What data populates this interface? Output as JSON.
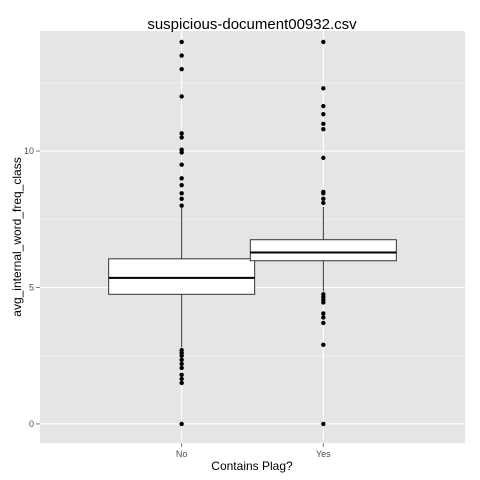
{
  "chart_data": {
    "type": "boxplot",
    "title": "suspicious-document00932.csv",
    "xlabel": "Contains Plag?",
    "ylabel": "avg_internal_word_freq_class",
    "categories": [
      "No",
      "Yes"
    ],
    "ylim": [
      -0.7,
      14.4
    ],
    "yticks": [
      0,
      5,
      10
    ],
    "ytick_labels": [
      "0",
      "5",
      "10"
    ],
    "grid": true,
    "legend": "none",
    "boxes": [
      {
        "category": "No",
        "q1": 4.75,
        "median": 5.35,
        "q3": 6.05,
        "whisker_low": 2.8,
        "whisker_high": 8.0,
        "outliers": [
          0.0,
          1.5,
          1.65,
          1.8,
          2.05,
          2.2,
          2.35,
          2.5,
          2.6,
          2.7,
          8.0,
          8.25,
          8.45,
          8.75,
          9.0,
          9.5,
          9.95,
          10.05,
          10.5,
          10.65,
          12.0,
          13.0,
          13.5,
          14.0
        ]
      },
      {
        "category": "Yes",
        "q1": 5.98,
        "median": 6.28,
        "q3": 6.75,
        "whisker_low": 4.85,
        "whisker_high": 7.95,
        "outliers": [
          0.0,
          2.9,
          3.7,
          3.9,
          4.05,
          4.45,
          4.55,
          4.65,
          4.75,
          8.1,
          8.25,
          8.45,
          8.5,
          9.75,
          10.8,
          11.0,
          11.35,
          11.65,
          12.3,
          14.0
        ]
      }
    ],
    "colors": {
      "panel_bg": "#e5e5e5",
      "grid_major": "#ffffff",
      "grid_minor": "#f2f2f2",
      "box_fill": "#ffffff",
      "box_stroke": "#333333",
      "point": "#000000",
      "tick_text": "#4d4d4d"
    }
  }
}
